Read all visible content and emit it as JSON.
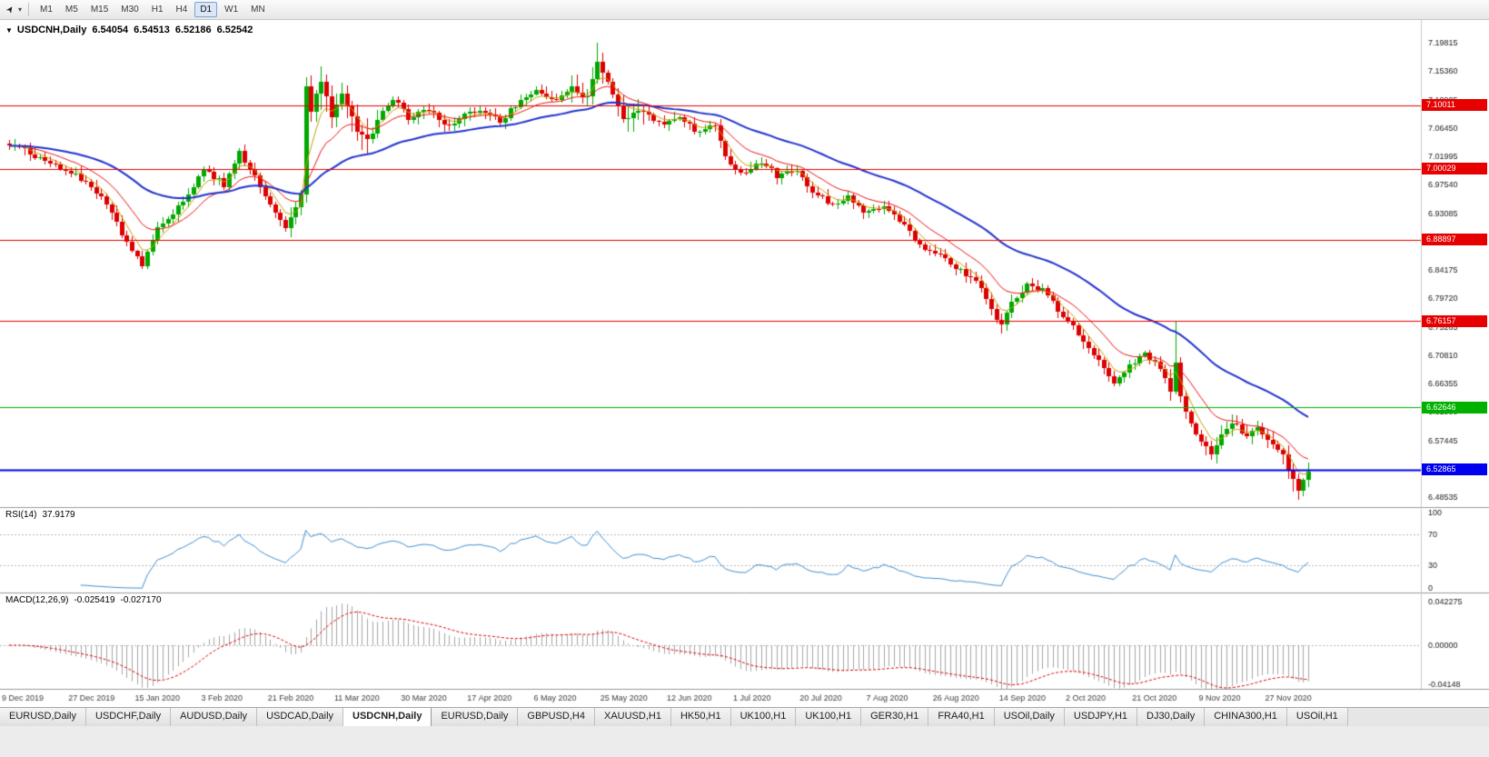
{
  "icons": {
    "cursor": "➤",
    "dropdown": "▾",
    "chart_marker": "▼"
  },
  "toolbar": {
    "timeframes": [
      {
        "label": "M1",
        "active": false
      },
      {
        "label": "M5",
        "active": false
      },
      {
        "label": "M15",
        "active": false
      },
      {
        "label": "M30",
        "active": false
      },
      {
        "label": "H1",
        "active": false
      },
      {
        "label": "H4",
        "active": false
      },
      {
        "label": "D1",
        "active": true
      },
      {
        "label": "W1",
        "active": false
      },
      {
        "label": "MN",
        "active": false
      }
    ]
  },
  "chart": {
    "symbol_period": "USDCNH,Daily",
    "ohlc": {
      "open": "6.54054",
      "high": "6.54513",
      "low": "6.52186",
      "close": "6.52542"
    }
  },
  "indicators": {
    "rsi": {
      "label": "RSI(14)",
      "value": "37.9179"
    },
    "macd": {
      "label": "MACD(12,26,9)",
      "main": "-0.025419",
      "signal": "-0.027170"
    }
  },
  "tabs": {
    "items": [
      {
        "label": "EURUSD,Daily",
        "active": false
      },
      {
        "label": "USDCHF,Daily",
        "active": false
      },
      {
        "label": "AUDUSD,Daily",
        "active": false
      },
      {
        "label": "USDCAD,Daily",
        "active": false
      },
      {
        "label": "USDCNH,Daily",
        "active": true
      },
      {
        "label": "EURUSD,Daily",
        "active": false
      },
      {
        "label": "GBPUSD,H4",
        "active": false
      },
      {
        "label": "XAUUSD,H1",
        "active": false
      },
      {
        "label": "HK50,H1",
        "active": false
      },
      {
        "label": "UK100,H1",
        "active": false
      },
      {
        "label": "UK100,H1",
        "active": false
      },
      {
        "label": "GER30,H1",
        "active": false
      },
      {
        "label": "FRA40,H1",
        "active": false
      },
      {
        "label": "USOil,Daily",
        "active": false
      },
      {
        "label": "USDJPY,H1",
        "active": false
      },
      {
        "label": "DJ30,Daily",
        "active": false
      },
      {
        "label": "CHINA300,H1",
        "active": false
      },
      {
        "label": "USOil,H1",
        "active": false
      }
    ]
  },
  "chart_data": {
    "type": "candlestick",
    "symbol": "USDCNH",
    "timeframe": "Daily",
    "candle_count": 255,
    "x_labels": [
      "9 Dec 2019",
      "27 Dec 2019",
      "15 Jan 2020",
      "3 Feb 2020",
      "21 Feb 2020",
      "11 Mar 2020",
      "30 Mar 2020",
      "17 Apr 2020",
      "6 May 2020",
      "25 May 2020",
      "12 Jun 2020",
      "1 Jul 2020",
      "20 Jul 2020",
      "7 Aug 2020",
      "26 Aug 2020",
      "14 Sep 2020",
      "2 Oct 2020",
      "21 Oct 2020",
      "9 Nov 2020",
      "27 Nov 2020"
    ],
    "x_label_step": 13,
    "y_ticks": [
      "7.19815",
      "7.15360",
      "7.10905",
      "7.06450",
      "7.01995",
      "6.97540",
      "6.93085",
      "6.88630",
      "6.84175",
      "6.79720",
      "6.75265",
      "6.70810",
      "6.66355",
      "6.61900",
      "6.57445",
      "6.52990",
      "6.48535"
    ],
    "levels": [
      {
        "price": 7.10011,
        "label": "7.10011",
        "color": "#e60000",
        "width": 1
      },
      {
        "price": 7.00029,
        "label": "7.00029",
        "color": "#e60000",
        "width": 1
      },
      {
        "price": 6.88897,
        "label": "6.88897",
        "color": "#e60000",
        "width": 1
      },
      {
        "price": 6.76157,
        "label": "6.76157",
        "color": "#e60000",
        "width": 1
      },
      {
        "price": 6.62646,
        "label": "6.62646",
        "color": "#00b200",
        "width": 1
      },
      {
        "price": 6.52865,
        "label": "6.52865",
        "color": "#0000ee",
        "width": 2
      }
    ],
    "close_anchors": [
      [
        0,
        7.04
      ],
      [
        5,
        7.02
      ],
      [
        12,
        6.995
      ],
      [
        18,
        6.96
      ],
      [
        24,
        6.87
      ],
      [
        26,
        6.85
      ],
      [
        29,
        6.905
      ],
      [
        35,
        6.96
      ],
      [
        38,
        7.0
      ],
      [
        42,
        6.975
      ],
      [
        45,
        7.025
      ],
      [
        48,
        6.99
      ],
      [
        51,
        6.945
      ],
      [
        54,
        6.91
      ],
      [
        57,
        6.96
      ],
      [
        58,
        7.13
      ],
      [
        59,
        7.09
      ],
      [
        61,
        7.14
      ],
      [
        63,
        7.08
      ],
      [
        65,
        7.12
      ],
      [
        68,
        7.06
      ],
      [
        70,
        7.045
      ],
      [
        73,
        7.09
      ],
      [
        75,
        7.11
      ],
      [
        78,
        7.08
      ],
      [
        82,
        7.095
      ],
      [
        85,
        7.065
      ],
      [
        89,
        7.085
      ],
      [
        92,
        7.09
      ],
      [
        96,
        7.075
      ],
      [
        99,
        7.1
      ],
      [
        103,
        7.125
      ],
      [
        107,
        7.105
      ],
      [
        110,
        7.13
      ],
      [
        113,
        7.11
      ],
      [
        115,
        7.17
      ],
      [
        116,
        7.155
      ],
      [
        118,
        7.12
      ],
      [
        120,
        7.075
      ],
      [
        123,
        7.095
      ],
      [
        127,
        7.07
      ],
      [
        131,
        7.085
      ],
      [
        134,
        7.06
      ],
      [
        138,
        7.07
      ],
      [
        140,
        7.02
      ],
      [
        143,
        6.995
      ],
      [
        147,
        7.01
      ],
      [
        150,
        6.99
      ],
      [
        154,
        6.995
      ],
      [
        157,
        6.965
      ],
      [
        161,
        6.945
      ],
      [
        164,
        6.955
      ],
      [
        168,
        6.93
      ],
      [
        171,
        6.94
      ],
      [
        175,
        6.91
      ],
      [
        178,
        6.88
      ],
      [
        182,
        6.865
      ],
      [
        186,
        6.84
      ],
      [
        189,
        6.825
      ],
      [
        192,
        6.78
      ],
      [
        194,
        6.755
      ],
      [
        196,
        6.79
      ],
      [
        199,
        6.82
      ],
      [
        202,
        6.81
      ],
      [
        205,
        6.78
      ],
      [
        208,
        6.755
      ],
      [
        210,
        6.73
      ],
      [
        213,
        6.7
      ],
      [
        216,
        6.665
      ],
      [
        218,
        6.685
      ],
      [
        222,
        6.71
      ],
      [
        225,
        6.69
      ],
      [
        227,
        6.655
      ],
      [
        228,
        6.7
      ],
      [
        229,
        6.64
      ],
      [
        231,
        6.605
      ],
      [
        233,
        6.57
      ],
      [
        235,
        6.555
      ],
      [
        237,
        6.585
      ],
      [
        239,
        6.605
      ],
      [
        242,
        6.58
      ],
      [
        244,
        6.595
      ],
      [
        246,
        6.575
      ],
      [
        249,
        6.55
      ],
      [
        251,
        6.51
      ],
      [
        252,
        6.5
      ],
      [
        253,
        6.515
      ],
      [
        254,
        6.52542
      ]
    ],
    "wick_spikes": [
      {
        "i": 26,
        "low": 6.843
      },
      {
        "i": 115,
        "high": 7.19815
      },
      {
        "i": 194,
        "low": 6.742
      },
      {
        "i": 228,
        "high": 6.762
      },
      {
        "i": 251,
        "low": 6.494
      }
    ],
    "volatility_zones": [
      {
        "from": 55,
        "to": 72,
        "mult": 2.4
      },
      {
        "from": 110,
        "to": 124,
        "mult": 1.9
      },
      {
        "from": 225,
        "to": 254,
        "mult": 1.4
      }
    ],
    "moving_averages": [
      {
        "period": 5,
        "color": "#c8a000",
        "width": 1
      },
      {
        "period": 13,
        "color": "#ee1515",
        "width": 1
      },
      {
        "period": 40,
        "color": "#2233cc",
        "width": 2
      }
    ],
    "rsi": {
      "period": 14,
      "current": 37.9179,
      "scale_labels": [
        "100",
        "70",
        "30",
        "0"
      ],
      "guide_levels": [
        70,
        30
      ]
    },
    "macd": {
      "fast": 12,
      "slow": 26,
      "signal": 9,
      "current_main": -0.025419,
      "current_signal": -0.02717,
      "scale_labels": [
        {
          "text": "0.042275",
          "value": 0.042275
        },
        {
          "text": "0.00000",
          "value": 0.0
        },
        {
          "text": "-0.04148",
          "value": -0.04148
        }
      ]
    },
    "colors": {
      "bull": "#00a800",
      "bear": "#dd0000",
      "rsi_line": "#3f8fd2",
      "macd_hist": "#a6a6a6",
      "macd_signal": "#e00000",
      "axis_text": "#1a1a1a",
      "date_text": "#3c3c3c",
      "panel_border": "#9a9a9a",
      "dashed_guide": "#b8b8b8",
      "scale_separator": "#cccccc"
    }
  }
}
